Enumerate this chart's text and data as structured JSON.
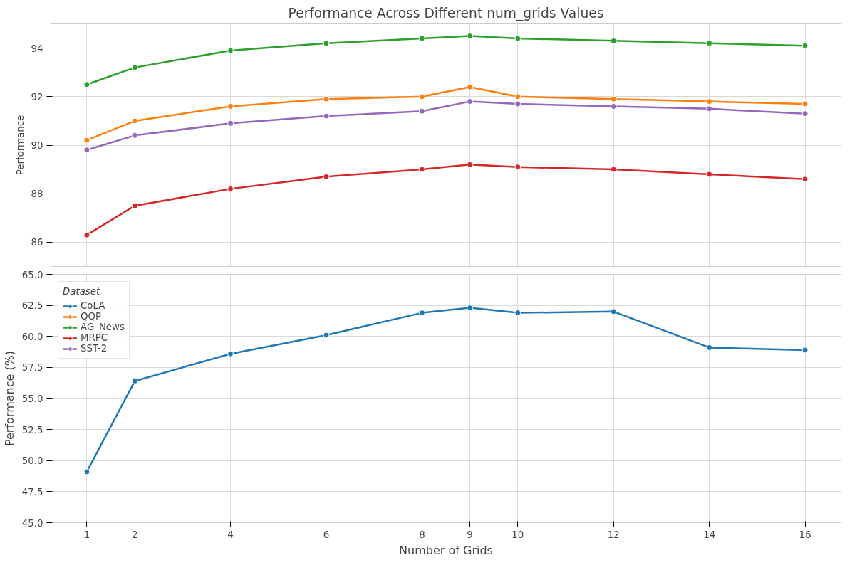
{
  "chart_data": [
    {
      "type": "line",
      "title": "Performance Across Different num_grids Values",
      "ylabel": "Performance",
      "x": [
        1,
        2,
        4,
        6,
        8,
        9,
        10,
        12,
        14,
        16
      ],
      "xlim": [
        0.25,
        16.75
      ],
      "xticks": [
        1,
        2,
        4,
        6,
        8,
        9,
        10,
        12,
        14,
        16
      ],
      "ylim": [
        85,
        95
      ],
      "yticks": [
        86,
        88,
        90,
        92,
        94
      ],
      "tick_labels": "y",
      "grid": true,
      "marker": "circle",
      "line_style": "solid",
      "legend": "bottom left",
      "series": [
        {
          "name": "QQP",
          "color": "#ff7f0e",
          "values": [
            90.2,
            91.0,
            91.6,
            91.9,
            92.0,
            92.4,
            92.0,
            91.9,
            91.8,
            91.7
          ]
        },
        {
          "name": "AG_News",
          "color": "#2ca02c",
          "values": [
            92.5,
            93.2,
            93.9,
            94.2,
            94.4,
            94.5,
            94.4,
            94.3,
            94.2,
            94.1
          ]
        },
        {
          "name": "MRPC",
          "color": "#d62728",
          "values": [
            86.3,
            87.5,
            88.2,
            88.7,
            89.0,
            89.2,
            89.1,
            89.0,
            88.8,
            88.6
          ]
        },
        {
          "name": "SST-2",
          "color": "#9467bd",
          "values": [
            89.8,
            90.4,
            90.9,
            91.2,
            91.4,
            91.8,
            91.7,
            91.6,
            91.5,
            91.3
          ]
        }
      ]
    },
    {
      "type": "line",
      "xlabel": "Number of Grids",
      "ylabel": "Performance (%)",
      "legend_title": "Dataset",
      "x": [
        1,
        2,
        4,
        6,
        8,
        9,
        10,
        12,
        14,
        16
      ],
      "xlim": [
        0.25,
        16.75
      ],
      "xticks": [
        1,
        2,
        4,
        6,
        8,
        9,
        10,
        12,
        14,
        16
      ],
      "ylim": [
        45,
        65
      ],
      "yticks": [
        {
          "value": 45,
          "label": "45.0"
        },
        {
          "value": 47.5,
          "label": "47.5"
        },
        {
          "value": 50,
          "label": "50.0"
        },
        {
          "value": 52.5,
          "label": "52.5"
        },
        {
          "value": 55,
          "label": "55.0"
        },
        {
          "value": 57.5,
          "label": "57.5"
        },
        {
          "value": 60,
          "label": "60.0"
        },
        {
          "value": 62.5,
          "label": "62.5"
        },
        {
          "value": 65,
          "label": "65.0"
        }
      ],
      "grid": true,
      "marker": "circle",
      "line_style": "solid",
      "legend": "top left",
      "series": [
        {
          "name": "CoLA",
          "color": "#1f77b4",
          "values": [
            49.1,
            56.4,
            58.6,
            60.1,
            61.9,
            62.3,
            61.9,
            62.0,
            59.1,
            58.9
          ]
        }
      ]
    }
  ]
}
